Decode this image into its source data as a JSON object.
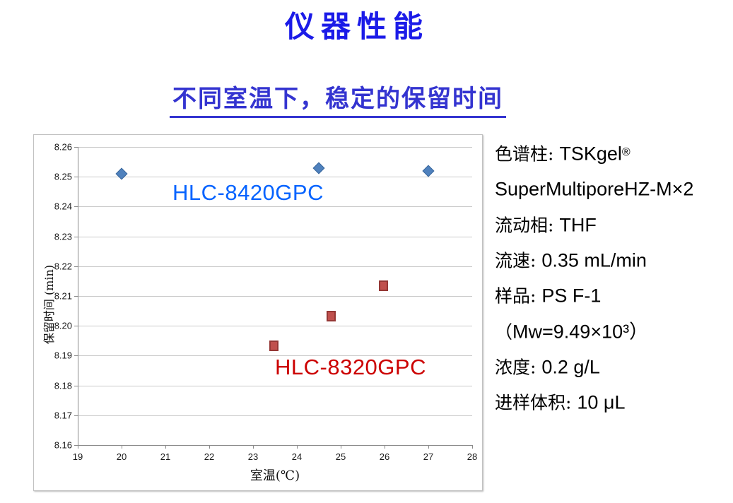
{
  "page": {
    "title": "仪器性能",
    "subtitle": "不同室温下，稳定的保留时间"
  },
  "chart_data": {
    "type": "scatter",
    "title": "",
    "xlabel": "室温(℃)",
    "ylabel": "保留时间 (min)",
    "xlim": [
      19,
      28
    ],
    "ylim": [
      8.16,
      8.26
    ],
    "xticks": [
      19,
      20,
      21,
      22,
      23,
      24,
      25,
      26,
      27,
      28
    ],
    "yticks": [
      8.16,
      8.17,
      8.18,
      8.19,
      8.2,
      8.21,
      8.22,
      8.23,
      8.24,
      8.25,
      8.26
    ],
    "grid": "horizontal",
    "legend_position": "inline-text-labels",
    "series": [
      {
        "name": "HLC-8420GPC",
        "marker": "diamond",
        "color": "#4f81bd",
        "edge": "#3a679c",
        "label_color": "#0563ff",
        "points": [
          [
            20,
            8.251
          ],
          [
            24.5,
            8.253
          ],
          [
            27,
            8.252
          ]
        ]
      },
      {
        "name": "HLC-8320GPC",
        "marker": "square",
        "color": "#c0504d",
        "edge": "#953735",
        "label_color": "#cc0000",
        "points": [
          [
            23.5,
            8.193
          ],
          [
            24.8,
            8.203
          ],
          [
            26,
            8.213
          ]
        ]
      }
    ]
  },
  "specs": {
    "lines": [
      {
        "label": "色谱柱: ",
        "value": "TSKgel",
        "sup": "®"
      },
      {
        "label": "",
        "value": "SuperMultiporeHZ-M×2",
        "sup": ""
      },
      {
        "label": "流动相: ",
        "value": "THF",
        "sup": ""
      },
      {
        "label": "流速: ",
        "value": "0.35 mL/min",
        "sup": ""
      },
      {
        "label": "样品: ",
        "value": "PS F-1",
        "sup": ""
      },
      {
        "label": "（",
        "value": "Mw=9.49×10³）",
        "sup": ""
      },
      {
        "label": "浓度: ",
        "value": "0.2 g/L",
        "sup": ""
      },
      {
        "label": "进样体积: ",
        "value": "10 μL",
        "sup": ""
      }
    ]
  },
  "colors": {
    "title_blue": "#1b1be8",
    "subtitle_blue": "#3434d0",
    "gridline_gray": "#c9c9c9",
    "axis_gray": "#8a8a8a"
  }
}
